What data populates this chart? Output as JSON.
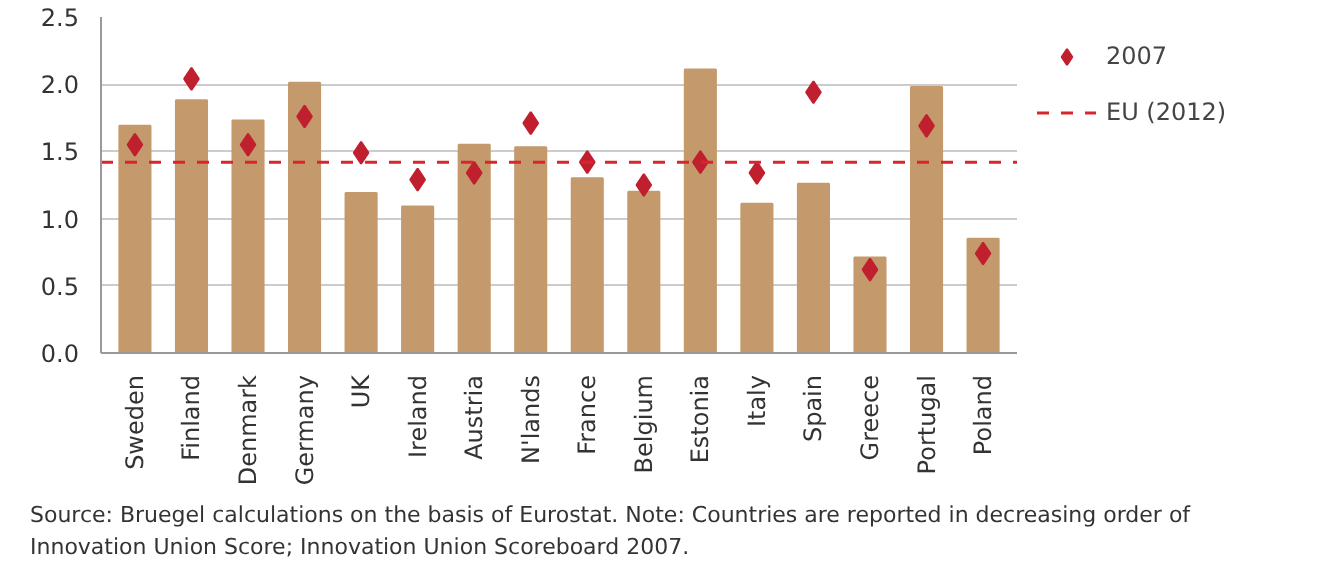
{
  "chart_data": {
    "type": "bar",
    "categories": [
      "Sweden",
      "Finland",
      "Denmark",
      "Germany",
      "UK",
      "Ireland",
      "Austria",
      "N'lands",
      "France",
      "Belgium",
      "Estonia",
      "Italy",
      "Spain",
      "Greece",
      "Portugal",
      "Poland"
    ],
    "series": [
      {
        "color": "#c49a6c",
        "values": [
          1.69,
          1.88,
          1.73,
          2.01,
          1.19,
          1.09,
          1.55,
          1.53,
          1.3,
          1.2,
          2.11,
          1.11,
          1.26,
          0.71,
          1.98,
          0.85
        ]
      },
      {
        "type": "scatter",
        "name": "2007",
        "color": "#c0202e",
        "marker": "diamond",
        "values": [
          1.55,
          2.04,
          1.55,
          1.76,
          1.49,
          1.29,
          1.34,
          1.71,
          1.42,
          1.25,
          1.42,
          1.34,
          1.94,
          0.62,
          1.69,
          0.74
        ]
      }
    ],
    "ylim": [
      0,
      2.5
    ],
    "yticks": [
      {
        "value": 0,
        "label": "0.0"
      },
      {
        "value": 0.5,
        "label": "0.5"
      },
      {
        "value": 1,
        "label": "1.0"
      },
      {
        "value": 1.5,
        "label": "1.5"
      },
      {
        "value": 2,
        "label": "2.0"
      },
      {
        "value": 2.5,
        "label": "2.5"
      }
    ],
    "ref_lines": [
      {
        "axis": "y",
        "value": 1.42,
        "label": "EU (2012)",
        "color": "#d7262e",
        "line_style": "dashed"
      }
    ],
    "grid": "y",
    "legend": "top right",
    "annotations": [
      "Source: Bruegel calculations on the basis of Eurostat. Note: Countries are reported in decreasing order of Innovation Union Score; Innovation Union Scoreboard 2007."
    ]
  }
}
